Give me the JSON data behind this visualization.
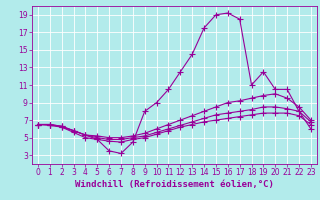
{
  "background_color": "#b2ebeb",
  "grid_color": "#ffffff",
  "line_color": "#990099",
  "xlabel": "Windchill (Refroidissement éolien,°C)",
  "xlim": [
    -0.5,
    23.5
  ],
  "ylim": [
    2,
    20
  ],
  "xticks": [
    0,
    1,
    2,
    3,
    4,
    5,
    6,
    7,
    8,
    9,
    10,
    11,
    12,
    13,
    14,
    15,
    16,
    17,
    18,
    19,
    20,
    21,
    22,
    23
  ],
  "yticks": [
    3,
    5,
    7,
    9,
    11,
    13,
    15,
    17,
    19
  ],
  "series": [
    {
      "x": [
        0,
        1,
        2,
        3,
        4,
        5,
        6,
        7,
        8,
        9,
        10,
        11,
        12,
        13,
        14,
        15,
        16,
        17,
        18,
        19,
        20,
        21,
        22,
        23
      ],
      "y": [
        6.5,
        6.5,
        6.3,
        5.8,
        5.3,
        4.8,
        3.5,
        3.2,
        4.5,
        8.0,
        9.0,
        10.5,
        12.5,
        14.5,
        17.5,
        19.0,
        19.2,
        18.5,
        11.0,
        12.5,
        10.5,
        10.5,
        8.0,
        6.0
      ]
    },
    {
      "x": [
        0,
        1,
        2,
        3,
        4,
        5,
        6,
        7,
        8,
        9,
        10,
        11,
        12,
        13,
        14,
        15,
        16,
        17,
        18,
        19,
        20,
        21,
        22,
        23
      ],
      "y": [
        6.5,
        6.5,
        6.3,
        5.8,
        5.3,
        5.2,
        5.0,
        5.0,
        5.2,
        5.5,
        6.0,
        6.5,
        7.0,
        7.5,
        8.0,
        8.5,
        9.0,
        9.2,
        9.5,
        9.8,
        10.0,
        9.5,
        8.5,
        7.0
      ]
    },
    {
      "x": [
        0,
        1,
        2,
        3,
        4,
        5,
        6,
        7,
        8,
        9,
        10,
        11,
        12,
        13,
        14,
        15,
        16,
        17,
        18,
        19,
        20,
        21,
        22,
        23
      ],
      "y": [
        6.5,
        6.5,
        6.2,
        5.8,
        5.3,
        5.0,
        4.8,
        4.8,
        5.0,
        5.2,
        5.6,
        6.0,
        6.4,
        6.8,
        7.2,
        7.6,
        7.8,
        8.0,
        8.2,
        8.5,
        8.5,
        8.3,
        8.0,
        6.8
      ]
    },
    {
      "x": [
        0,
        1,
        2,
        3,
        4,
        5,
        6,
        7,
        8,
        9,
        10,
        11,
        12,
        13,
        14,
        15,
        16,
        17,
        18,
        19,
        20,
        21,
        22,
        23
      ],
      "y": [
        6.5,
        6.4,
        6.2,
        5.6,
        5.0,
        4.8,
        4.6,
        4.5,
        4.8,
        5.0,
        5.4,
        5.8,
        6.2,
        6.5,
        6.8,
        7.0,
        7.2,
        7.4,
        7.6,
        7.8,
        7.8,
        7.8,
        7.5,
        6.5
      ]
    }
  ],
  "marker": "+",
  "markersize": 4,
  "linewidth": 0.8,
  "tick_fontsize": 5.5,
  "xlabel_fontsize": 6.5
}
